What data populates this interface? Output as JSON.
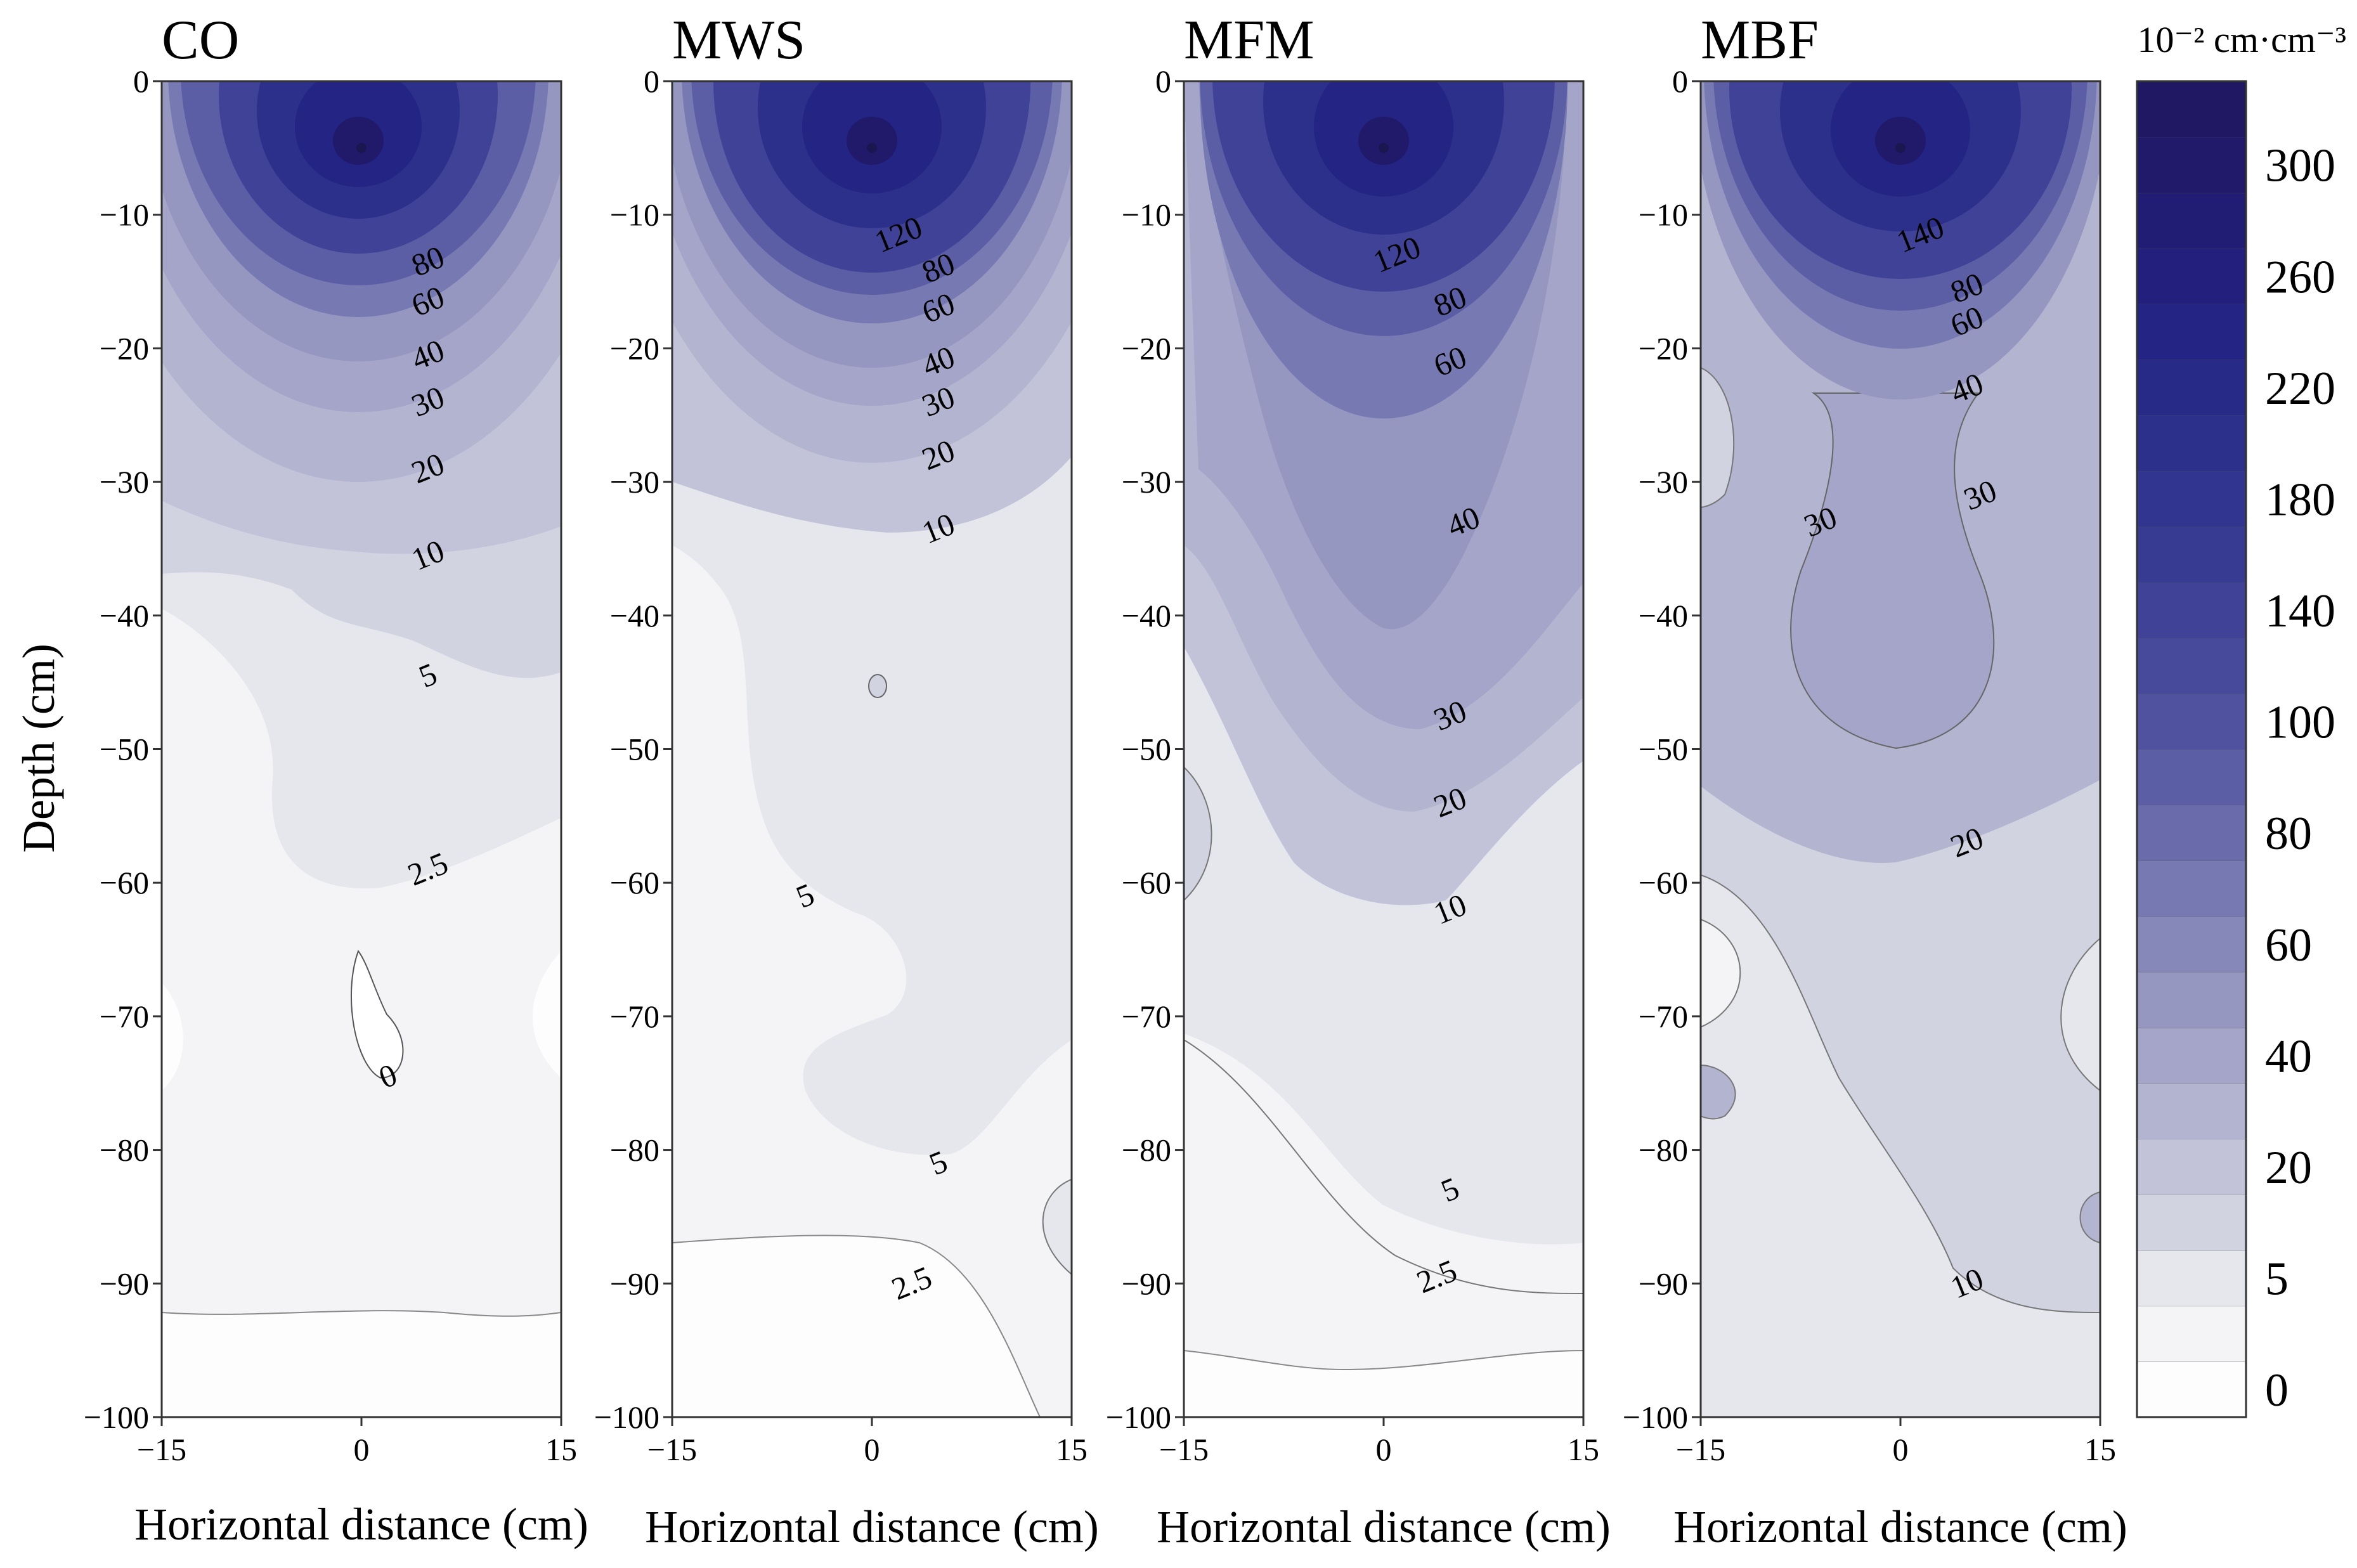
{
  "chart_data": [
    {
      "type": "contour",
      "title": "CO",
      "xlabel": "Horizontal distance (cm)",
      "ylabel": "Depth (cm)",
      "xlim": [
        -15,
        15
      ],
      "ylim": [
        -100,
        0
      ],
      "xticks": [
        "−15",
        "0",
        "15"
      ],
      "yticks": [
        "0",
        "−10",
        "−20",
        "−30",
        "−40",
        "−50",
        "−60",
        "−70",
        "−80",
        "−90",
        "−100"
      ],
      "source": {
        "x": 0,
        "y": -5
      },
      "contours": [
        {
          "level": 80,
          "label": "80",
          "x": 5,
          "y": -13.5
        },
        {
          "level": 60,
          "label": "60",
          "x": 5,
          "y": -16.5
        },
        {
          "level": 40,
          "label": "40",
          "x": 5,
          "y": -20.5
        },
        {
          "level": 30,
          "label": "30",
          "x": 5,
          "y": -24
        },
        {
          "level": 20,
          "label": "20",
          "x": 5,
          "y": -29
        },
        {
          "level": 10,
          "label": "10",
          "x": 5,
          "y": -35.5
        },
        {
          "level": 5,
          "label": "5",
          "x": 5,
          "y": -44.5
        },
        {
          "level": 2.5,
          "label": "2.5",
          "x": 5,
          "y": -59
        },
        {
          "level": 0,
          "label": "0",
          "x": 2,
          "y": -74.5
        }
      ]
    },
    {
      "type": "contour",
      "title": "MWS",
      "xlabel": "Horizontal distance (cm)",
      "xlim": [
        -15,
        15
      ],
      "ylim": [
        -100,
        0
      ],
      "xticks": [
        "−15",
        "0",
        "15"
      ],
      "yticks": [
        "0",
        "−10",
        "−20",
        "−30",
        "−40",
        "−50",
        "−60",
        "−70",
        "−80",
        "−90",
        "−100"
      ],
      "source": {
        "x": 0,
        "y": -5
      },
      "contours": [
        {
          "level": 120,
          "label": "120",
          "x": 2,
          "y": -11.5
        },
        {
          "level": 80,
          "label": "80",
          "x": 5,
          "y": -14
        },
        {
          "level": 60,
          "label": "60",
          "x": 5,
          "y": -17
        },
        {
          "level": 40,
          "label": "40",
          "x": 5,
          "y": -21
        },
        {
          "level": 30,
          "label": "30",
          "x": 5,
          "y": -24
        },
        {
          "level": 20,
          "label": "20",
          "x": 5,
          "y": -28
        },
        {
          "level": 10,
          "label": "10",
          "x": 5,
          "y": -33.5
        },
        {
          "level": 5,
          "label": "5",
          "x": -5,
          "y": -61
        },
        {
          "level": 5,
          "label": "5",
          "x": 5,
          "y": -81
        },
        {
          "level": 2.5,
          "label": "2.5",
          "x": 3,
          "y": -90
        }
      ]
    },
    {
      "type": "contour",
      "title": "MFM",
      "xlabel": "Horizontal distance (cm)",
      "xlim": [
        -15,
        15
      ],
      "ylim": [
        -100,
        0
      ],
      "xticks": [
        "−15",
        "0",
        "15"
      ],
      "yticks": [
        "0",
        "−10",
        "−20",
        "−30",
        "−40",
        "−50",
        "−60",
        "−70",
        "−80",
        "−90",
        "−100"
      ],
      "source": {
        "x": 0,
        "y": -5
      },
      "contours": [
        {
          "level": 120,
          "label": "120",
          "x": 1,
          "y": -13
        },
        {
          "level": 80,
          "label": "80",
          "x": 5,
          "y": -16.5
        },
        {
          "level": 60,
          "label": "60",
          "x": 5,
          "y": -21
        },
        {
          "level": 40,
          "label": "40",
          "x": 6,
          "y": -33
        },
        {
          "level": 30,
          "label": "30",
          "x": 5,
          "y": -47.5
        },
        {
          "level": 20,
          "label": "20",
          "x": 5,
          "y": -54
        },
        {
          "level": 10,
          "label": "10",
          "x": 5,
          "y": -62
        },
        {
          "level": 5,
          "label": "5",
          "x": 5,
          "y": -83
        },
        {
          "level": 2.5,
          "label": "2.5",
          "x": 4,
          "y": -89.5
        }
      ]
    },
    {
      "type": "contour",
      "title": "MBF",
      "xlabel": "Horizontal distance (cm)",
      "xlim": [
        -15,
        15
      ],
      "ylim": [
        -100,
        0
      ],
      "xticks": [
        "−15",
        "0",
        "15"
      ],
      "yticks": [
        "0",
        "−10",
        "−20",
        "−30",
        "−40",
        "−50",
        "−60",
        "−70",
        "−80",
        "−90",
        "−100"
      ],
      "source": {
        "x": 0,
        "y": -5
      },
      "contours": [
        {
          "level": 140,
          "label": "140",
          "x": 1.5,
          "y": -11.5
        },
        {
          "level": 80,
          "label": "80",
          "x": 5,
          "y": -15.5
        },
        {
          "level": 60,
          "label": "60",
          "x": 5,
          "y": -18
        },
        {
          "level": 40,
          "label": "40",
          "x": 5,
          "y": -23
        },
        {
          "level": 30,
          "label": "30",
          "x": -6,
          "y": -33
        },
        {
          "level": 30,
          "label": "30",
          "x": 6,
          "y": -31
        },
        {
          "level": 20,
          "label": "20",
          "x": 5,
          "y": -57
        },
        {
          "level": 10,
          "label": "10",
          "x": 5,
          "y": -90
        }
      ]
    }
  ],
  "colorbar": {
    "unit_label": "10⁻² cm·cm⁻³",
    "levels": [
      "0",
      "2.5",
      "5",
      "10",
      "20",
      "30",
      "40",
      "50",
      "60",
      "70",
      "80",
      "90",
      "100",
      "120",
      "140",
      "160",
      "180",
      "200",
      "220",
      "240",
      "260",
      "280",
      "300",
      "320"
    ],
    "tick_labels": [
      "0",
      "5",
      "20",
      "40",
      "60",
      "80",
      "100",
      "140",
      "180",
      "220",
      "260",
      "300"
    ],
    "colors": [
      "#fdfdfe",
      "#f4f4f7",
      "#e6e7ed",
      "#d2d3e0",
      "#c2c3d8",
      "#b3b4d0",
      "#a4a5c8",
      "#9597c0",
      "#8688b9",
      "#7779b2",
      "#696bab",
      "#5b5ea5",
      "#50529f",
      "#474a9a",
      "#3f4296",
      "#383b92",
      "#32358f",
      "#2d308b",
      "#282a87",
      "#232483",
      "#22207c",
      "#221d74",
      "#211a6b",
      "#201862"
    ],
    "ticks": [
      {
        "label": "0",
        "value": 0
      },
      {
        "label": "5",
        "value": 5
      },
      {
        "label": "20",
        "value": 20
      },
      {
        "label": "40",
        "value": 40
      },
      {
        "label": "60",
        "value": 60
      },
      {
        "label": "80",
        "value": 80
      },
      {
        "label": "100",
        "value": 100
      },
      {
        "label": "140",
        "value": 140
      },
      {
        "label": "180",
        "value": 180
      },
      {
        "label": "220",
        "value": 220
      },
      {
        "label": "260",
        "value": 260
      },
      {
        "label": "300",
        "value": 300
      }
    ]
  }
}
